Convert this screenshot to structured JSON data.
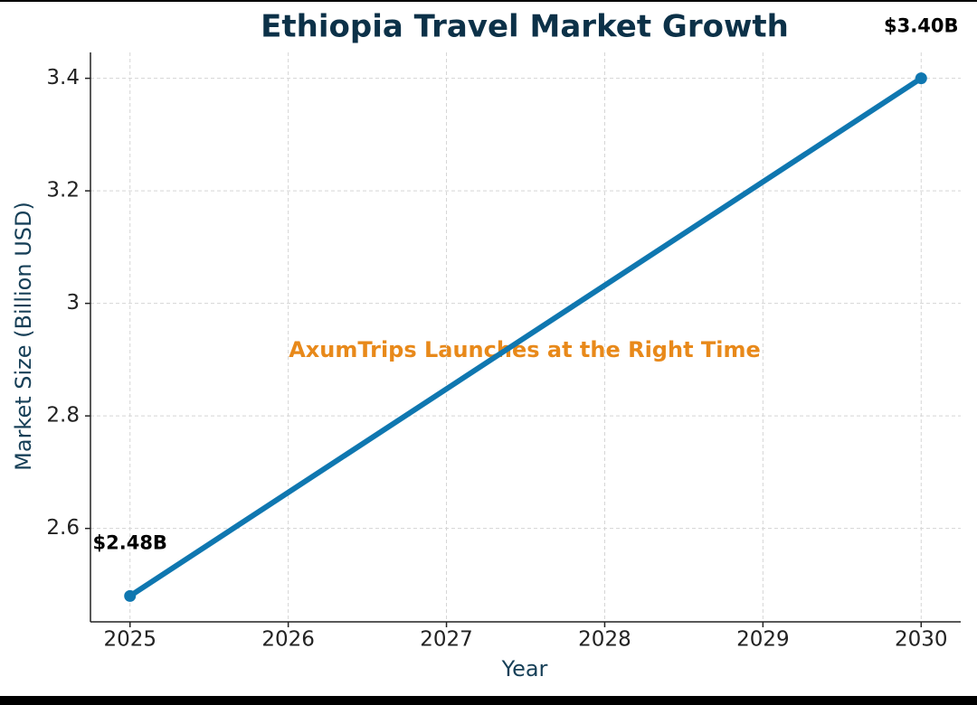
{
  "chart_data": {
    "type": "line",
    "title": "Ethiopia Travel Market Growth",
    "x_label": "Year",
    "y_label": "Market Size (Billion USD)",
    "x": [
      2025,
      2030
    ],
    "values": [
      2.48,
      3.4
    ],
    "value_labels": [
      "$2.48B",
      "$3.40B"
    ],
    "color": "#0f77b0",
    "annotation": "AxumTrips Launches at the Right Time",
    "xlim": [
      2024.75,
      2030.25
    ],
    "xticks": [
      2025,
      2026,
      2027,
      2028,
      2029,
      2030
    ],
    "ylim": [
      2.434,
      3.446
    ],
    "yticks": [
      2.6,
      2.8,
      3.0,
      3.2,
      3.4
    ],
    "grid": true
  }
}
